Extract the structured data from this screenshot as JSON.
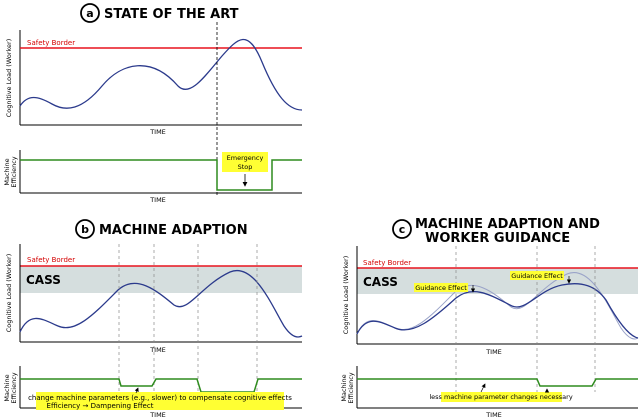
{
  "panels": {
    "a": {
      "badge": "a",
      "title": "STATE OF THE ART"
    },
    "b": {
      "badge": "b",
      "title": "MACHINE ADAPTION"
    },
    "c": {
      "badge": "c",
      "title_line1": "MACHINE ADAPTION AND",
      "title_line2": "WORKER GUIDANCE"
    }
  },
  "labels": {
    "safety_border": "Safety Border",
    "cognitive_load": "Cognitive Load (Worker)",
    "time": "TIME",
    "machine": "Machine",
    "efficiency": "Efficiency",
    "cass": "CASS",
    "emergency_line1": "Emergency",
    "emergency_line2": "Stop",
    "b_note_line1": "change machine parameters (e.g., slower) to compensate cognitive effects",
    "b_note_line2": "Efficiency → Dampening Effect",
    "guidance_effect": "Guidance Effect",
    "c_note": "less machine parameter changes necessary"
  },
  "colors": {
    "curve": "#2b3a8c",
    "guided_curve": "#9aa3c8",
    "safety": "#e8141e",
    "efficiency": "#2e8b1e",
    "cass_band": "#d5dede",
    "highlight": "#ffff33"
  }
}
